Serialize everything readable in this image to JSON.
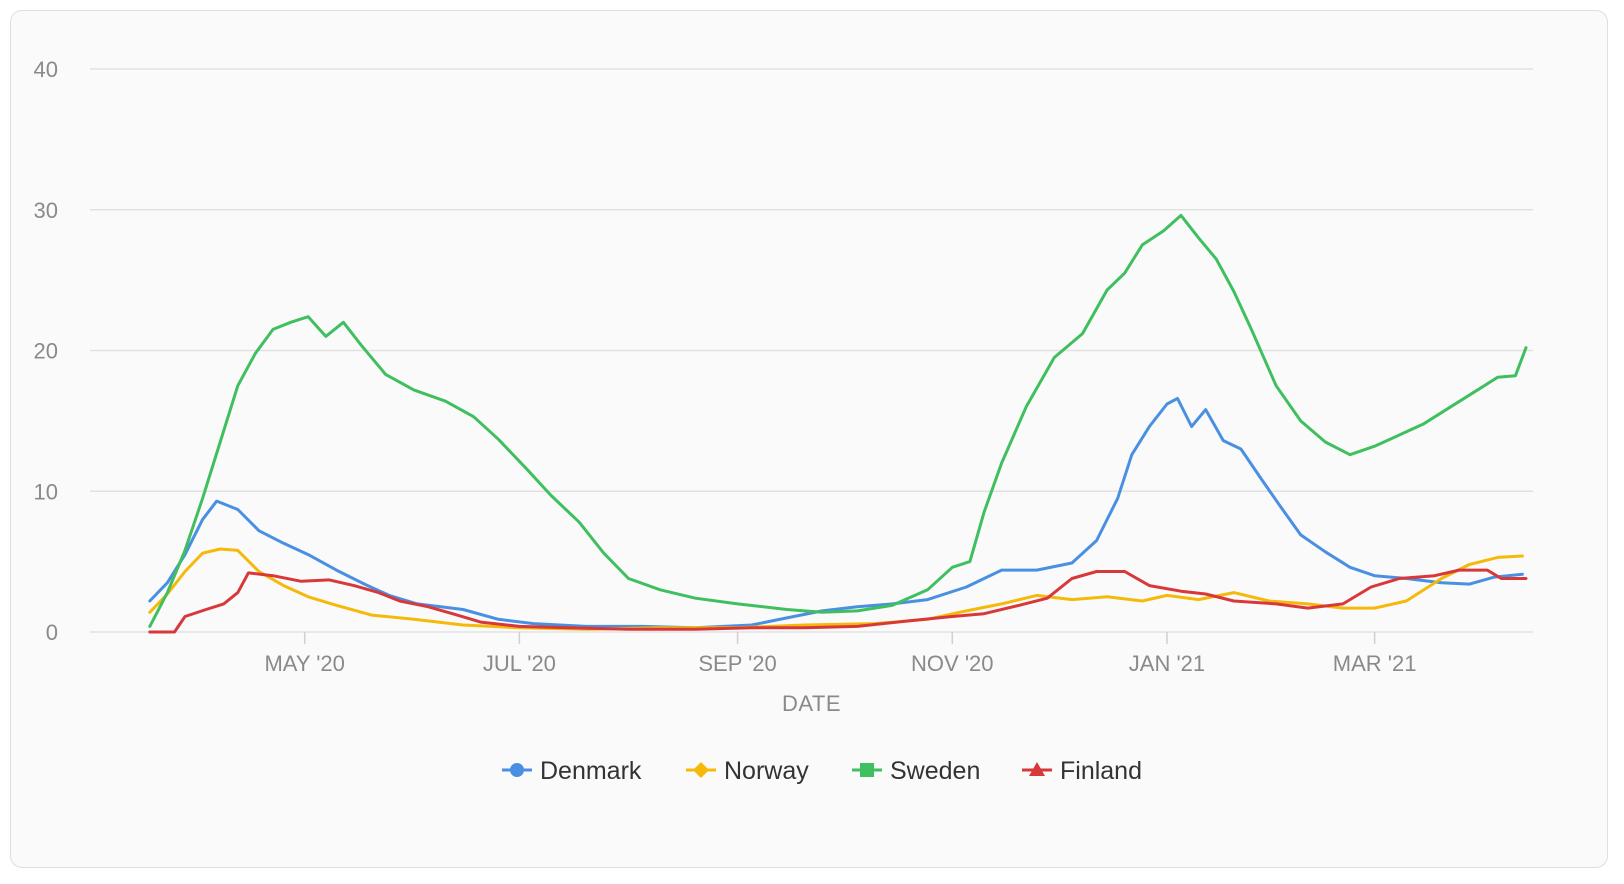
{
  "chart_data": {
    "type": "line",
    "title": "",
    "xlabel": "DATE",
    "ylabel": "",
    "ylim": [
      0,
      40
    ],
    "yticks": [
      "0",
      "10",
      "20",
      "30",
      "40"
    ],
    "x_start": "2020-03-01",
    "x_end": "2021-04-15",
    "xticks": [
      {
        "date": "2020-05-01",
        "label": "MAY '20"
      },
      {
        "date": "2020-07-01",
        "label": "JUL '20"
      },
      {
        "date": "2020-09-01",
        "label": "SEP '20"
      },
      {
        "date": "2020-11-01",
        "label": "NOV '20"
      },
      {
        "date": "2021-01-01",
        "label": "JAN '21"
      },
      {
        "date": "2021-03-01",
        "label": "MAR '21"
      }
    ],
    "grid": true,
    "legend_position": "bottom",
    "series": [
      {
        "name": "Denmark",
        "color": "#4a90e2",
        "marker": "circle",
        "points": [
          [
            "2020-03-18",
            2.2
          ],
          [
            "2020-03-23",
            3.5
          ],
          [
            "2020-03-28",
            5.5
          ],
          [
            "2020-04-02",
            8.0
          ],
          [
            "2020-04-06",
            9.3
          ],
          [
            "2020-04-12",
            8.7
          ],
          [
            "2020-04-18",
            7.2
          ],
          [
            "2020-04-25",
            6.3
          ],
          [
            "2020-05-02",
            5.5
          ],
          [
            "2020-05-10",
            4.4
          ],
          [
            "2020-05-18",
            3.4
          ],
          [
            "2020-05-25",
            2.6
          ],
          [
            "2020-06-02",
            2.0
          ],
          [
            "2020-06-15",
            1.6
          ],
          [
            "2020-06-25",
            0.9
          ],
          [
            "2020-07-05",
            0.6
          ],
          [
            "2020-07-20",
            0.4
          ],
          [
            "2020-08-05",
            0.4
          ],
          [
            "2020-08-20",
            0.3
          ],
          [
            "2020-09-05",
            0.5
          ],
          [
            "2020-09-15",
            1.0
          ],
          [
            "2020-09-25",
            1.5
          ],
          [
            "2020-10-05",
            1.8
          ],
          [
            "2020-10-15",
            2.0
          ],
          [
            "2020-10-25",
            2.3
          ],
          [
            "2020-11-05",
            3.2
          ],
          [
            "2020-11-15",
            4.4
          ],
          [
            "2020-11-25",
            4.4
          ],
          [
            "2020-12-05",
            4.9
          ],
          [
            "2020-12-12",
            6.5
          ],
          [
            "2020-12-18",
            9.5
          ],
          [
            "2020-12-22",
            12.6
          ],
          [
            "2020-12-27",
            14.6
          ],
          [
            "2021-01-01",
            16.2
          ],
          [
            "2021-01-04",
            16.6
          ],
          [
            "2021-01-08",
            14.6
          ],
          [
            "2021-01-12",
            15.8
          ],
          [
            "2021-01-17",
            13.6
          ],
          [
            "2021-01-22",
            13.0
          ],
          [
            "2021-01-28",
            10.8
          ],
          [
            "2021-02-02",
            9.0
          ],
          [
            "2021-02-08",
            6.9
          ],
          [
            "2021-02-15",
            5.7
          ],
          [
            "2021-02-22",
            4.6
          ],
          [
            "2021-03-01",
            4.0
          ],
          [
            "2021-03-10",
            3.8
          ],
          [
            "2021-03-20",
            3.5
          ],
          [
            "2021-03-28",
            3.4
          ],
          [
            "2021-04-04",
            3.9
          ],
          [
            "2021-04-12",
            4.1
          ]
        ]
      },
      {
        "name": "Norway",
        "color": "#f5b90a",
        "marker": "diamond",
        "points": [
          [
            "2020-03-18",
            1.4
          ],
          [
            "2020-03-23",
            2.7
          ],
          [
            "2020-03-28",
            4.3
          ],
          [
            "2020-04-02",
            5.6
          ],
          [
            "2020-04-07",
            5.9
          ],
          [
            "2020-04-12",
            5.8
          ],
          [
            "2020-04-18",
            4.3
          ],
          [
            "2020-04-25",
            3.3
          ],
          [
            "2020-05-02",
            2.5
          ],
          [
            "2020-05-10",
            1.9
          ],
          [
            "2020-05-20",
            1.2
          ],
          [
            "2020-06-01",
            0.9
          ],
          [
            "2020-06-15",
            0.5
          ],
          [
            "2020-07-01",
            0.3
          ],
          [
            "2020-07-20",
            0.2
          ],
          [
            "2020-08-10",
            0.3
          ],
          [
            "2020-09-01",
            0.3
          ],
          [
            "2020-09-20",
            0.5
          ],
          [
            "2020-10-10",
            0.6
          ],
          [
            "2020-10-25",
            0.9
          ],
          [
            "2020-11-05",
            1.5
          ],
          [
            "2020-11-15",
            2.0
          ],
          [
            "2020-11-25",
            2.6
          ],
          [
            "2020-12-05",
            2.3
          ],
          [
            "2020-12-15",
            2.5
          ],
          [
            "2020-12-25",
            2.2
          ],
          [
            "2021-01-01",
            2.6
          ],
          [
            "2021-01-10",
            2.3
          ],
          [
            "2021-01-20",
            2.8
          ],
          [
            "2021-01-30",
            2.2
          ],
          [
            "2021-02-10",
            2.0
          ],
          [
            "2021-02-20",
            1.7
          ],
          [
            "2021-03-01",
            1.7
          ],
          [
            "2021-03-10",
            2.2
          ],
          [
            "2021-03-20",
            3.8
          ],
          [
            "2021-03-28",
            4.8
          ],
          [
            "2021-04-05",
            5.3
          ],
          [
            "2021-04-12",
            5.4
          ]
        ]
      },
      {
        "name": "Sweden",
        "color": "#3fbf5f",
        "marker": "square",
        "points": [
          [
            "2020-03-18",
            0.4
          ],
          [
            "2020-03-23",
            2.8
          ],
          [
            "2020-03-28",
            5.8
          ],
          [
            "2020-04-02",
            9.5
          ],
          [
            "2020-04-07",
            13.5
          ],
          [
            "2020-04-12",
            17.5
          ],
          [
            "2020-04-17",
            19.8
          ],
          [
            "2020-04-22",
            21.5
          ],
          [
            "2020-04-27",
            22.0
          ],
          [
            "2020-05-02",
            22.4
          ],
          [
            "2020-05-07",
            21.0
          ],
          [
            "2020-05-12",
            22.0
          ],
          [
            "2020-05-17",
            20.4
          ],
          [
            "2020-05-24",
            18.3
          ],
          [
            "2020-06-01",
            17.2
          ],
          [
            "2020-06-10",
            16.4
          ],
          [
            "2020-06-18",
            15.3
          ],
          [
            "2020-06-25",
            13.7
          ],
          [
            "2020-07-03",
            11.6
          ],
          [
            "2020-07-10",
            9.7
          ],
          [
            "2020-07-18",
            7.8
          ],
          [
            "2020-07-25",
            5.6
          ],
          [
            "2020-08-01",
            3.8
          ],
          [
            "2020-08-10",
            3.0
          ],
          [
            "2020-08-20",
            2.4
          ],
          [
            "2020-09-01",
            2.0
          ],
          [
            "2020-09-15",
            1.6
          ],
          [
            "2020-09-25",
            1.4
          ],
          [
            "2020-10-05",
            1.5
          ],
          [
            "2020-10-15",
            1.9
          ],
          [
            "2020-10-25",
            3.0
          ],
          [
            "2020-11-01",
            4.6
          ],
          [
            "2020-11-06",
            5.0
          ],
          [
            "2020-11-10",
            8.5
          ],
          [
            "2020-11-15",
            12.0
          ],
          [
            "2020-11-22",
            16.0
          ],
          [
            "2020-11-30",
            19.5
          ],
          [
            "2020-12-08",
            21.2
          ],
          [
            "2020-12-15",
            24.3
          ],
          [
            "2020-12-20",
            25.5
          ],
          [
            "2020-12-25",
            27.5
          ],
          [
            "2020-12-31",
            28.5
          ],
          [
            "2021-01-05",
            29.6
          ],
          [
            "2021-01-10",
            28.0
          ],
          [
            "2021-01-15",
            26.5
          ],
          [
            "2021-01-20",
            24.2
          ],
          [
            "2021-01-25",
            21.5
          ],
          [
            "2021-02-01",
            17.5
          ],
          [
            "2021-02-08",
            15.0
          ],
          [
            "2021-02-15",
            13.5
          ],
          [
            "2021-02-22",
            12.6
          ],
          [
            "2021-03-01",
            13.2
          ],
          [
            "2021-03-08",
            14.0
          ],
          [
            "2021-03-15",
            14.8
          ],
          [
            "2021-03-22",
            15.9
          ],
          [
            "2021-03-29",
            17.0
          ],
          [
            "2021-04-05",
            18.1
          ],
          [
            "2021-04-10",
            18.2
          ],
          [
            "2021-04-13",
            20.2
          ]
        ]
      },
      {
        "name": "Finland",
        "color": "#d9383a",
        "marker": "triangle",
        "points": [
          [
            "2020-03-18",
            0.0
          ],
          [
            "2020-03-25",
            0.0
          ],
          [
            "2020-03-28",
            1.1
          ],
          [
            "2020-04-03",
            1.6
          ],
          [
            "2020-04-08",
            2.0
          ],
          [
            "2020-04-12",
            2.8
          ],
          [
            "2020-04-15",
            4.2
          ],
          [
            "2020-04-22",
            4.0
          ],
          [
            "2020-04-30",
            3.6
          ],
          [
            "2020-05-08",
            3.7
          ],
          [
            "2020-05-15",
            3.3
          ],
          [
            "2020-05-22",
            2.8
          ],
          [
            "2020-05-28",
            2.2
          ],
          [
            "2020-06-05",
            1.8
          ],
          [
            "2020-06-12",
            1.3
          ],
          [
            "2020-06-20",
            0.7
          ],
          [
            "2020-07-01",
            0.4
          ],
          [
            "2020-07-15",
            0.3
          ],
          [
            "2020-08-01",
            0.2
          ],
          [
            "2020-08-20",
            0.2
          ],
          [
            "2020-09-05",
            0.3
          ],
          [
            "2020-09-20",
            0.3
          ],
          [
            "2020-10-05",
            0.4
          ],
          [
            "2020-10-20",
            0.8
          ],
          [
            "2020-11-01",
            1.1
          ],
          [
            "2020-11-10",
            1.3
          ],
          [
            "2020-11-20",
            1.9
          ],
          [
            "2020-11-28",
            2.4
          ],
          [
            "2020-12-05",
            3.8
          ],
          [
            "2020-12-12",
            4.3
          ],
          [
            "2020-12-20",
            4.3
          ],
          [
            "2020-12-27",
            3.3
          ],
          [
            "2021-01-05",
            2.9
          ],
          [
            "2021-01-12",
            2.7
          ],
          [
            "2021-01-20",
            2.2
          ],
          [
            "2021-02-01",
            2.0
          ],
          [
            "2021-02-10",
            1.7
          ],
          [
            "2021-02-20",
            2.0
          ],
          [
            "2021-02-28",
            3.2
          ],
          [
            "2021-03-08",
            3.8
          ],
          [
            "2021-03-18",
            4.0
          ],
          [
            "2021-03-25",
            4.4
          ],
          [
            "2021-04-02",
            4.4
          ],
          [
            "2021-04-06",
            3.8
          ],
          [
            "2021-04-13",
            3.8
          ]
        ]
      }
    ]
  }
}
